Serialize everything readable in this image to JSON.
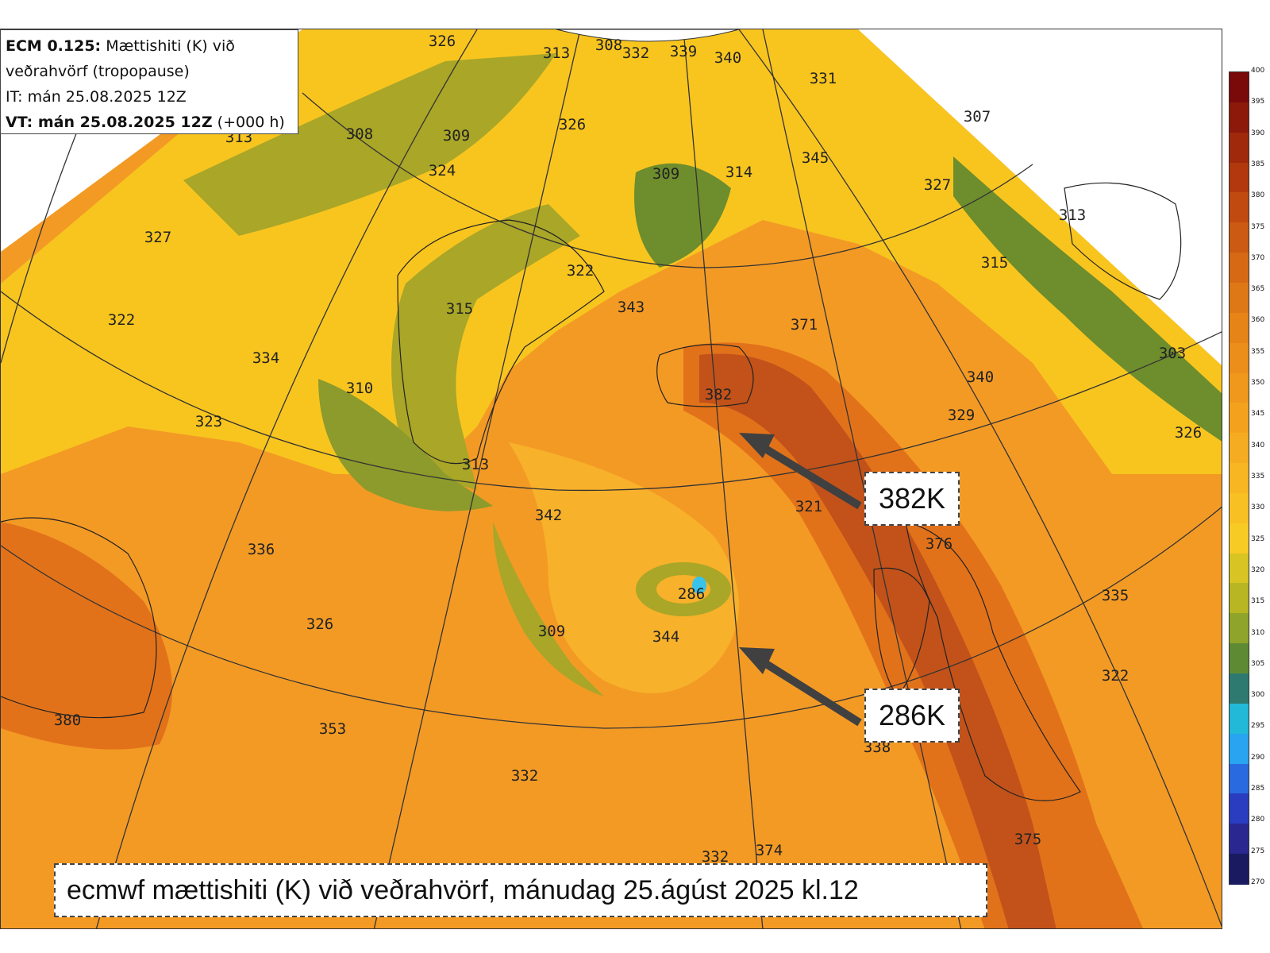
{
  "info_box": {
    "line1_bold": "ECM 0.125:",
    "line1_rest": " Mættishiti (K) við",
    "line2": "veðrahvörf (tropopause)",
    "line3": "IT: mán 25.08.2025 12Z",
    "line4_bold": "VT: mán 25.08.2025 12Z",
    "line4_rest": " (+000 h)"
  },
  "callouts": {
    "high": "382K",
    "low": "286K"
  },
  "caption": "ecmwf mættishiti (K) við veðrahvörf, mánudag 25.ágúst 2025 kl.12",
  "colorbar": {
    "ticks": [
      "400",
      "395",
      "390",
      "385",
      "380",
      "375",
      "370",
      "365",
      "360",
      "355",
      "350",
      "345",
      "340",
      "335",
      "330",
      "325",
      "320",
      "315",
      "310",
      "305",
      "300",
      "295",
      "290",
      "285",
      "280",
      "275",
      "270"
    ],
    "colors": [
      "#7a0a0a",
      "#8c1a0a",
      "#a0290c",
      "#b2380e",
      "#c04a10",
      "#cc5a12",
      "#d66a14",
      "#de7816",
      "#e68418",
      "#ec8e1a",
      "#f0981c",
      "#f4a21e",
      "#f6ac20",
      "#f8b622",
      "#f9c024",
      "#f8ca24",
      "#d8c422",
      "#b8b622",
      "#8ea42a",
      "#5f8a34",
      "#2e7a70",
      "#22b8d8",
      "#28a4f0",
      "#2a6ae0",
      "#2a3cc0",
      "#2a2890",
      "#1a1a60"
    ]
  },
  "map": {
    "colors": {
      "frame_white": "#ffffff",
      "orange": "#f39a25",
      "light_orange": "#f7b12a",
      "yellow": "#f8c51f",
      "olive": "#a9a628",
      "green": "#6e8d2c",
      "dark_green": "#4c7a33",
      "dark_orange": "#e2721a",
      "brown": "#c2521a",
      "cyan": "#39c3ea"
    },
    "values": [
      "326",
      "313",
      "308",
      "332",
      "339",
      "340",
      "331",
      "307",
      "313",
      "308",
      "309",
      "326",
      "324",
      "309",
      "314",
      "345",
      "327",
      "313",
      "327",
      "315",
      "322",
      "315",
      "343",
      "371",
      "322",
      "334",
      "310",
      "382",
      "340",
      "303",
      "323",
      "313",
      "329",
      "326",
      "342",
      "321",
      "336",
      "376",
      "286",
      "335",
      "326",
      "309",
      "344",
      "322",
      "380",
      "353",
      "338",
      "332",
      "374",
      "375",
      "332"
    ]
  }
}
